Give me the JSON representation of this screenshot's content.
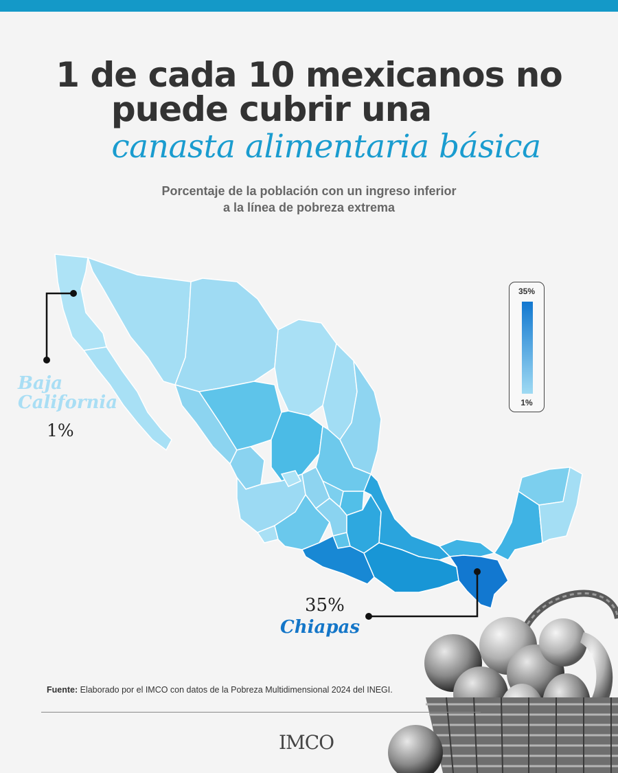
{
  "headline": {
    "line1": "1 de cada 10 mexicanos no",
    "line2": "puede cubrir una",
    "accent": "canasta alimentaria básica"
  },
  "subtitle": {
    "line1": "Porcentaje de la población con un ingreso inferior",
    "line2": "a la línea de pobreza extrema"
  },
  "legend": {
    "max_label": "35%",
    "min_label": "1%",
    "max_value": 35,
    "min_value": 1,
    "color_low": "#9fdaf3",
    "color_high": "#1278d0"
  },
  "callouts": {
    "min": {
      "state_line1": "Baja",
      "state_line2": "California",
      "value": "1%"
    },
    "max": {
      "value": "35%",
      "state": "Chiapas"
    }
  },
  "source": {
    "label": "Fuente:",
    "text": " Elaborado por el IMCO con datos de la Pobreza Multidimensional 2024 del INEGI."
  },
  "logo": {
    "text": "IMCO"
  },
  "colors": {
    "accent": "#1a9ccf",
    "top_bar": "#1499c8",
    "dark_text": "#333333"
  }
}
